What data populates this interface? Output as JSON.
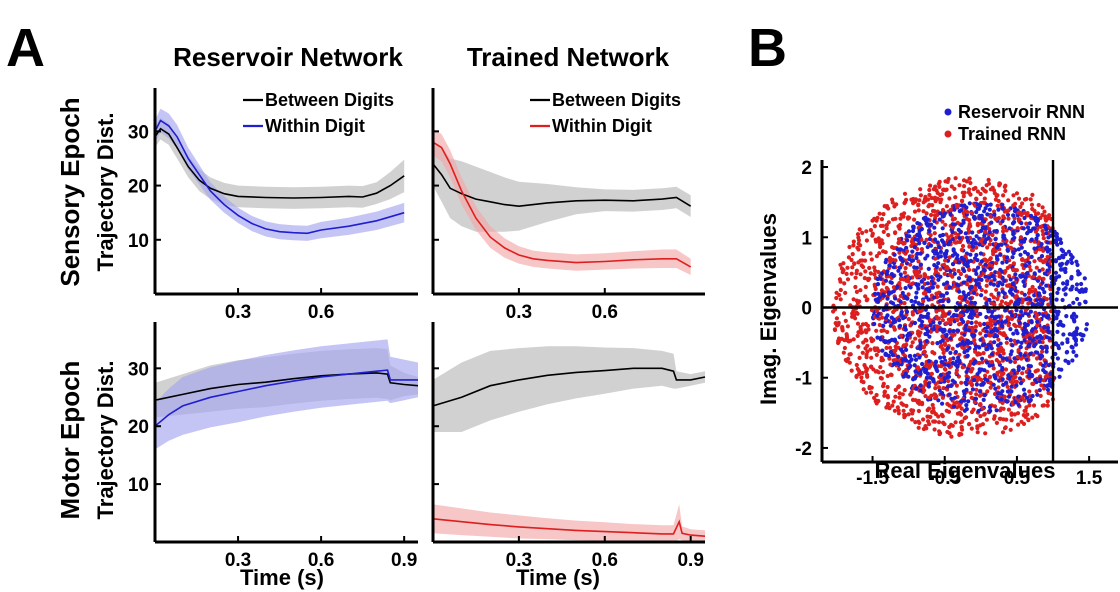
{
  "panel_a": {
    "label": "A",
    "col_titles": [
      "Reservoir Network",
      "Trained Network"
    ],
    "row_titles": [
      "Sensory Epoch",
      "Motor Epoch"
    ],
    "ylabel": "Trajectory Dist.",
    "xlabel": "Time (s)"
  },
  "panel_b": {
    "label": "B"
  },
  "colors": {
    "between": "#000000",
    "between_band": "#b8b8b8",
    "reservoir": "#1f1fd0",
    "reservoir_band": "#a6a6f0",
    "trained": "#dd1f1f",
    "trained_band": "#f2a8a8"
  },
  "chart_data": [
    {
      "type": "line",
      "panel": "A-sensory-reservoir",
      "xlim": [
        0,
        0.95
      ],
      "ylim": [
        0,
        38
      ],
      "xticks": [
        0.3,
        0.6
      ],
      "yticks": [
        10,
        20,
        30
      ],
      "legend": [
        "Between Digits",
        "Within Digit"
      ],
      "series": [
        {
          "name": "Between Digits",
          "color": "between",
          "x": [
            0,
            0.02,
            0.05,
            0.08,
            0.12,
            0.16,
            0.2,
            0.25,
            0.3,
            0.4,
            0.5,
            0.6,
            0.7,
            0.75,
            0.8,
            0.85,
            0.9
          ],
          "y": [
            29,
            30.5,
            29.5,
            27,
            23.5,
            21,
            19.5,
            18.5,
            18,
            17.8,
            17.7,
            17.8,
            18,
            17.9,
            18.6,
            20,
            21.8
          ],
          "band": [
            2,
            2,
            2,
            2,
            2,
            2,
            2,
            2,
            2,
            2,
            2,
            2,
            2,
            2,
            2,
            2.5,
            3
          ]
        },
        {
          "name": "Within Digit",
          "color": "reservoir",
          "x": [
            0,
            0.02,
            0.05,
            0.08,
            0.12,
            0.16,
            0.2,
            0.25,
            0.3,
            0.35,
            0.4,
            0.45,
            0.5,
            0.55,
            0.6,
            0.7,
            0.8,
            0.9
          ],
          "y": [
            30,
            32,
            31,
            29,
            25,
            22,
            19,
            16.5,
            14.5,
            13,
            12,
            11.5,
            11.3,
            11.2,
            11.8,
            12.5,
            13.5,
            15
          ],
          "band": [
            2,
            2.2,
            2.3,
            2.2,
            2,
            1.8,
            1.6,
            1.5,
            1.4,
            1.4,
            1.4,
            1.4,
            1.4,
            1.4,
            1.5,
            1.6,
            1.7,
            1.8
          ]
        }
      ]
    },
    {
      "type": "line",
      "panel": "A-sensory-trained",
      "xlim": [
        0,
        0.95
      ],
      "ylim": [
        0,
        38
      ],
      "xticks": [
        0.3,
        0.6
      ],
      "yticks": [
        10,
        20,
        30
      ],
      "legend": [
        "Between Digits",
        "Within Digit"
      ],
      "series": [
        {
          "name": "Between Digits",
          "color": "between",
          "x": [
            0,
            0.03,
            0.06,
            0.1,
            0.15,
            0.2,
            0.25,
            0.3,
            0.4,
            0.5,
            0.6,
            0.7,
            0.8,
            0.85,
            0.9
          ],
          "y": [
            24,
            22,
            19.5,
            18.5,
            17.5,
            17,
            16.5,
            16.2,
            16.8,
            17.2,
            17.3,
            17.2,
            17.5,
            17.8,
            16.2
          ],
          "band": [
            4,
            5,
            5.5,
            6,
            6,
            5.5,
            5,
            4.5,
            3.5,
            2.5,
            2,
            2,
            2,
            2,
            2
          ]
        },
        {
          "name": "Within Digit",
          "color": "trained",
          "x": [
            0,
            0.03,
            0.06,
            0.1,
            0.15,
            0.2,
            0.25,
            0.3,
            0.35,
            0.4,
            0.5,
            0.6,
            0.7,
            0.8,
            0.85,
            0.9
          ],
          "y": [
            28,
            27,
            24,
            19,
            14,
            10.5,
            8.5,
            7.2,
            6.5,
            6.2,
            5.8,
            6,
            6.3,
            6.5,
            6.5,
            5
          ],
          "band": [
            2.5,
            2.5,
            2.5,
            2.5,
            2.2,
            2,
            1.8,
            1.6,
            1.5,
            1.5,
            1.5,
            1.5,
            1.6,
            1.7,
            1.7,
            1.5
          ]
        }
      ]
    },
    {
      "type": "line",
      "panel": "A-motor-reservoir",
      "xlim": [
        0,
        0.95
      ],
      "ylim": [
        0,
        38
      ],
      "xticks": [
        0.3,
        0.6,
        0.9
      ],
      "yticks": [
        10,
        20,
        30
      ],
      "series": [
        {
          "name": "Between Digits",
          "color": "between",
          "x": [
            0,
            0.1,
            0.2,
            0.3,
            0.4,
            0.5,
            0.6,
            0.7,
            0.8,
            0.84,
            0.85,
            0.9,
            0.95
          ],
          "y": [
            24.5,
            25.5,
            26.5,
            27.2,
            27.6,
            28.2,
            28.7,
            29,
            29.2,
            29,
            27.5,
            27.2,
            27
          ],
          "band": [
            3,
            3.5,
            4,
            4.2,
            4.3,
            4.3,
            4.3,
            4.3,
            4.3,
            4.3,
            3,
            2,
            1.5
          ]
        },
        {
          "name": "Within Digit",
          "color": "reservoir",
          "x": [
            0,
            0.05,
            0.1,
            0.2,
            0.3,
            0.4,
            0.5,
            0.6,
            0.7,
            0.8,
            0.84,
            0.85,
            0.9,
            0.95
          ],
          "y": [
            20,
            22,
            23.5,
            25,
            26,
            27,
            27.8,
            28.5,
            29,
            29.5,
            29.7,
            28,
            28,
            28
          ],
          "band": [
            4,
            4.5,
            5,
            5.2,
            5.3,
            5.3,
            5.3,
            5.3,
            5.3,
            5.3,
            5.3,
            4,
            3.5,
            3
          ]
        }
      ]
    },
    {
      "type": "line",
      "panel": "A-motor-trained",
      "xlim": [
        0,
        0.95
      ],
      "ylim": [
        0,
        38
      ],
      "xticks": [
        0.3,
        0.6,
        0.9
      ],
      "yticks": [
        10,
        20,
        30
      ],
      "series": [
        {
          "name": "Between Digits",
          "color": "between",
          "x": [
            0,
            0.1,
            0.2,
            0.3,
            0.4,
            0.5,
            0.6,
            0.7,
            0.8,
            0.84,
            0.85,
            0.9,
            0.95
          ],
          "y": [
            23.5,
            25,
            27,
            28,
            28.8,
            29.3,
            29.6,
            30,
            30,
            29.5,
            28,
            28,
            28.5
          ],
          "band": [
            4.5,
            6,
            6,
            5.5,
            5,
            4.5,
            4,
            3.5,
            3,
            3,
            1.5,
            1,
            1
          ]
        },
        {
          "name": "Within Digit",
          "color": "trained",
          "x": [
            0,
            0.1,
            0.2,
            0.3,
            0.4,
            0.5,
            0.6,
            0.7,
            0.8,
            0.84,
            0.86,
            0.87,
            0.9,
            0.95
          ],
          "y": [
            4,
            3.5,
            3,
            2.6,
            2.3,
            2,
            1.8,
            1.6,
            1.4,
            1.4,
            3.5,
            1.5,
            1.2,
            1
          ],
          "band": [
            2.5,
            2.3,
            2.1,
            2,
            1.8,
            1.7,
            1.6,
            1.5,
            1.5,
            1.5,
            3,
            1.2,
            1,
            1
          ]
        }
      ]
    },
    {
      "type": "scatter",
      "panel": "B",
      "xlabel": "Real Eigenvalues",
      "ylabel": "Imag. Eigenvalues",
      "xlim": [
        -2.2,
        1.9
      ],
      "ylim": [
        -2.2,
        2.1
      ],
      "xticks": [
        -1.5,
        -0.5,
        0.5,
        1.5
      ],
      "xticklabels": [
        "-1.5",
        "-0.5",
        "0.5",
        "1.5"
      ],
      "yticks": [
        -2,
        -1,
        0,
        1,
        2
      ],
      "yticklabels": [
        "-2",
        "-1",
        "0",
        "1",
        "2"
      ],
      "reference_lines": {
        "x": 1,
        "y": 0
      },
      "series": [
        {
          "name": "Reservoir RNN",
          "color": "reservoir",
          "distribution": "uniform disc",
          "center": [
            0,
            0
          ],
          "radius": 1.5,
          "points": 1300
        },
        {
          "name": "Trained RNN",
          "color": "trained",
          "distribution": "uniform disc",
          "center": [
            -0.2,
            0
          ],
          "radius": 1.85,
          "x_max": 1.0,
          "y_max": 1.85,
          "points": 1800
        }
      ],
      "legend": [
        "Reservoir RNN",
        "Trained RNN"
      ]
    }
  ]
}
